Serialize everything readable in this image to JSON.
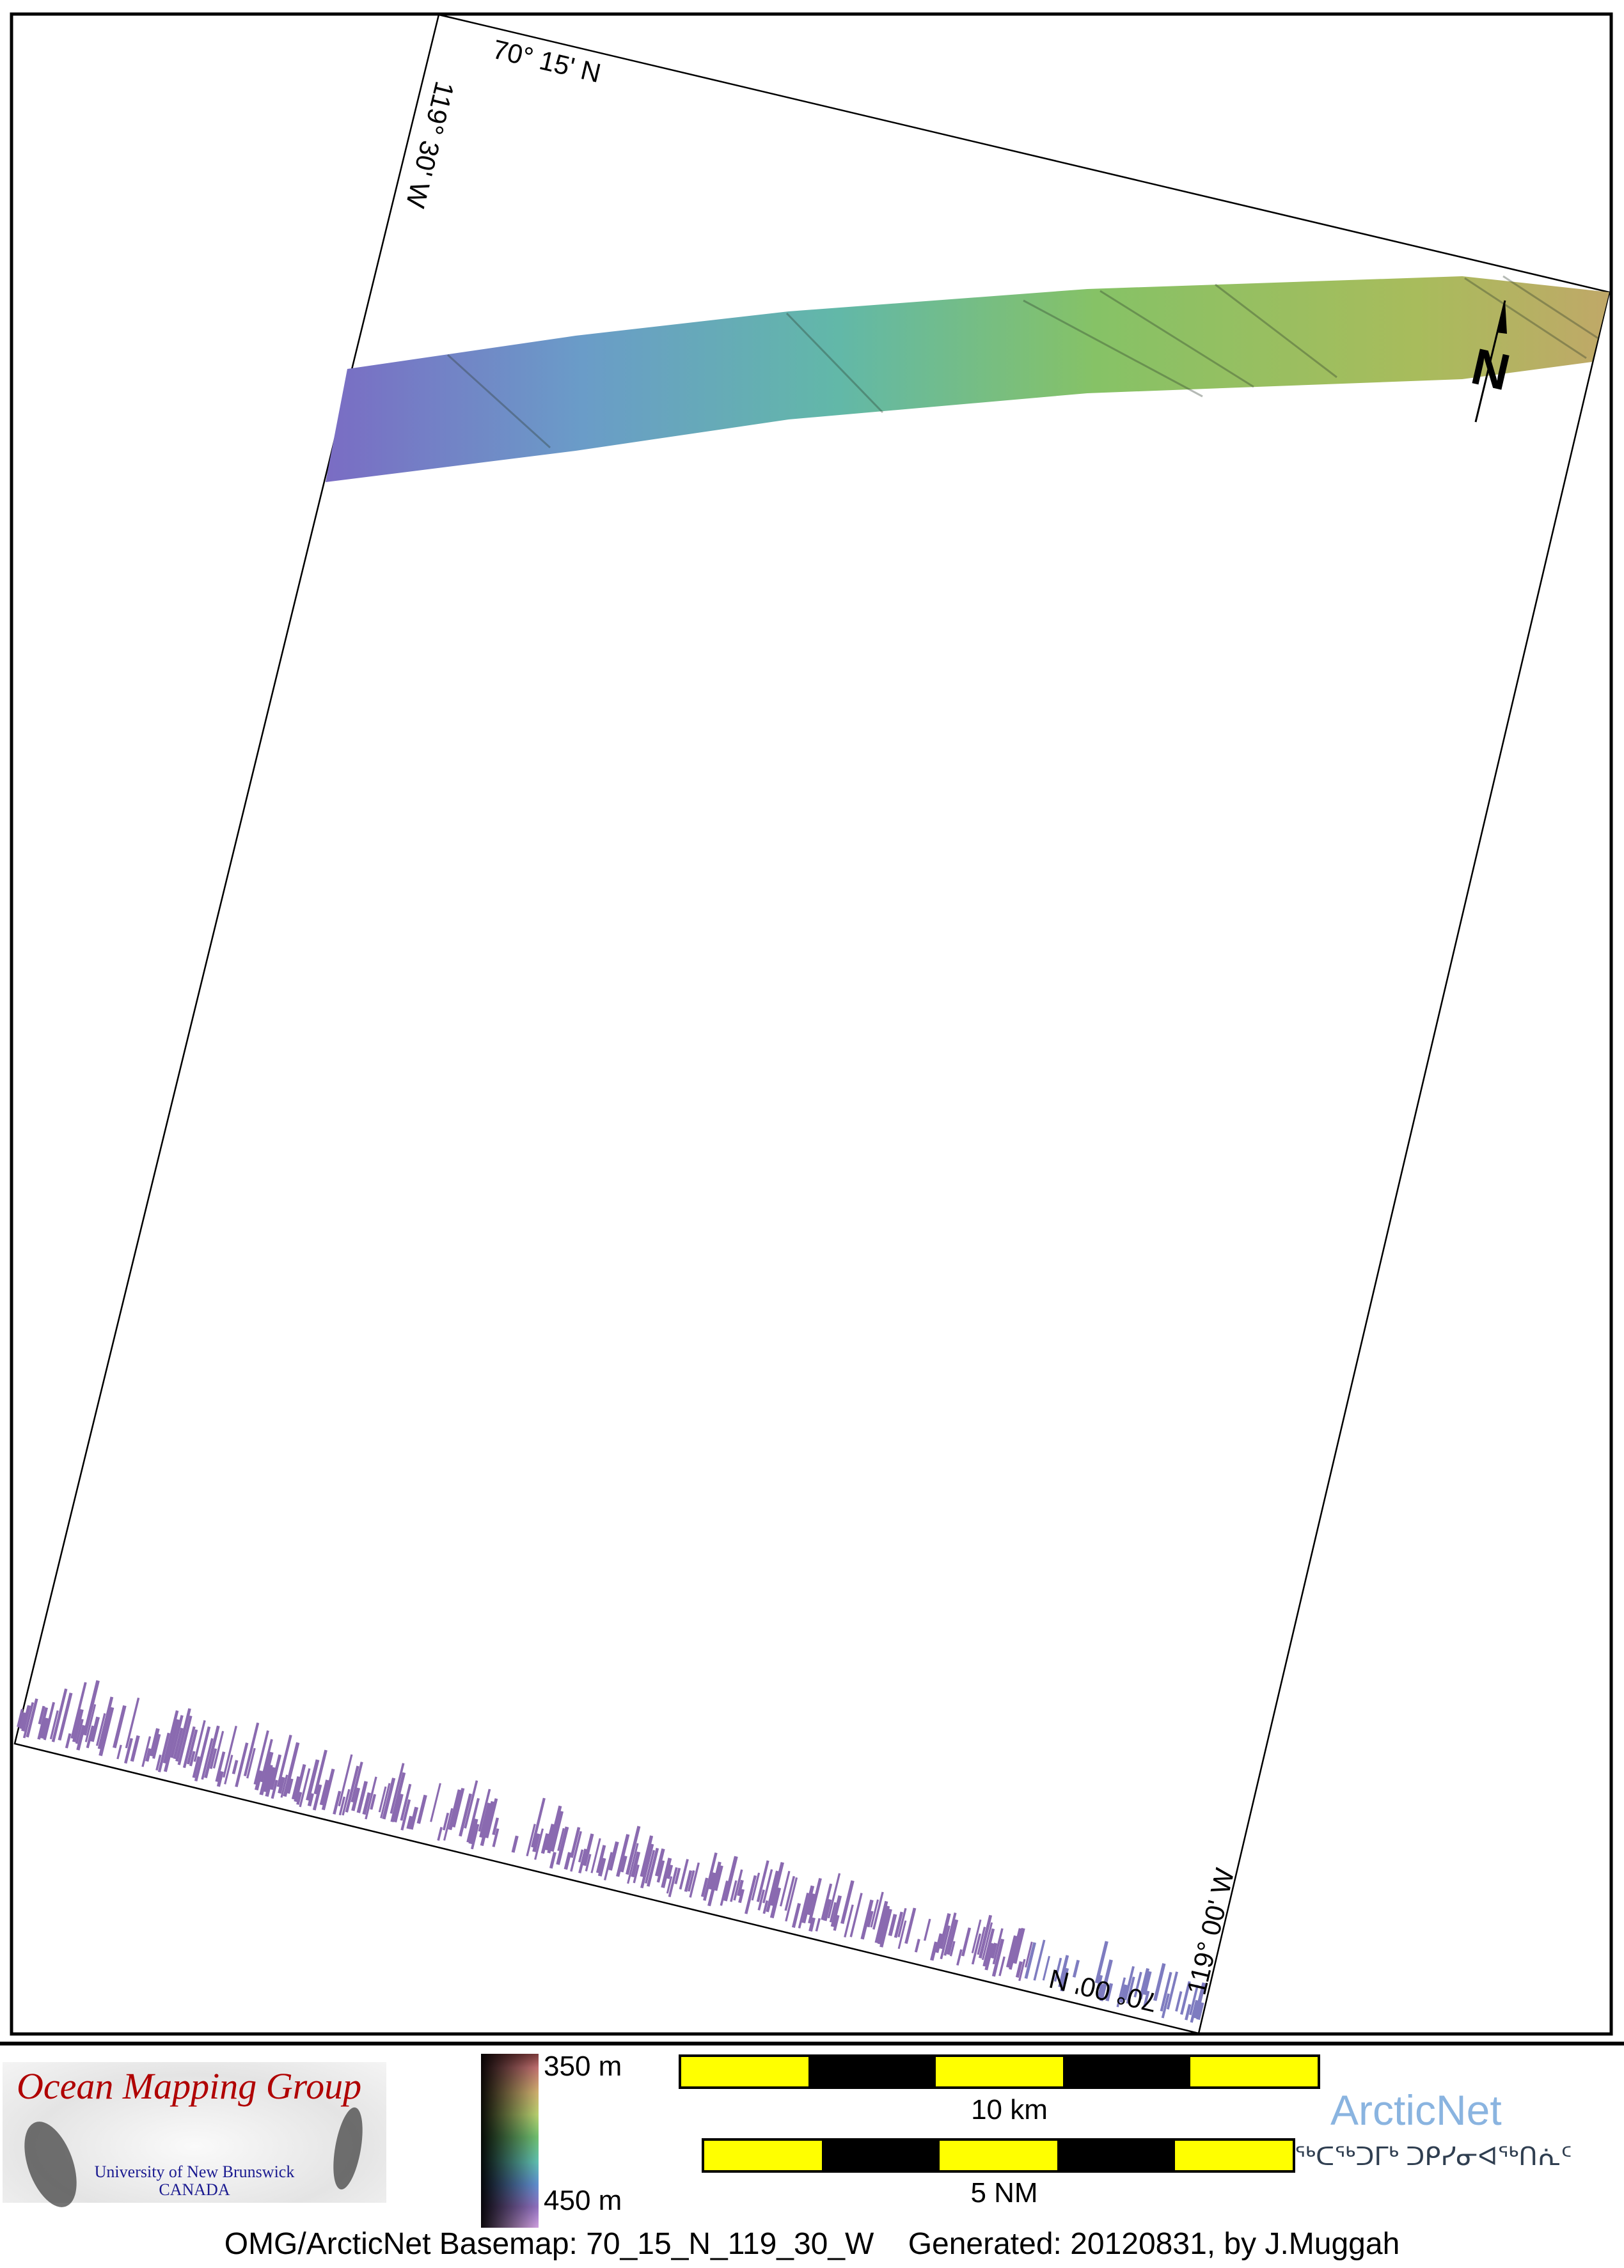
{
  "map": {
    "labels": {
      "top_lat": "70° 15' N",
      "bottom_lat": "70° 00' N",
      "left_lon": "119° 30' W",
      "right_lon": "119° 00' W"
    },
    "north_arrow": "N",
    "swath_colors": [
      "#7a6cc4",
      "#6a9cc8",
      "#62b8a8",
      "#86c266",
      "#a8bc5c",
      "#c0a868"
    ]
  },
  "footer": {
    "logo": {
      "title": "Ocean Mapping Group",
      "university": "University of New Brunswick",
      "country": "CANADA"
    },
    "colorbar": {
      "top_label": "350 m",
      "bottom_label": "450 m"
    },
    "scale_km": {
      "label": "10 km",
      "colors": [
        "#ffff00",
        "#000000"
      ]
    },
    "scale_nm": {
      "label": "5 NM"
    },
    "arcticnet": {
      "name": "ArcticNet",
      "syllabics": "ᖅᑕᖅᑐᒥᒃ ᑐᑭᓯᓂᐊᖅᑎᕇᑦ",
      "color": "#8ab4e0"
    },
    "caption": "OMG/ArcticNet Basemap: 70_15_N_119_30_W    Generated: 20120831, by J.Muggah"
  }
}
